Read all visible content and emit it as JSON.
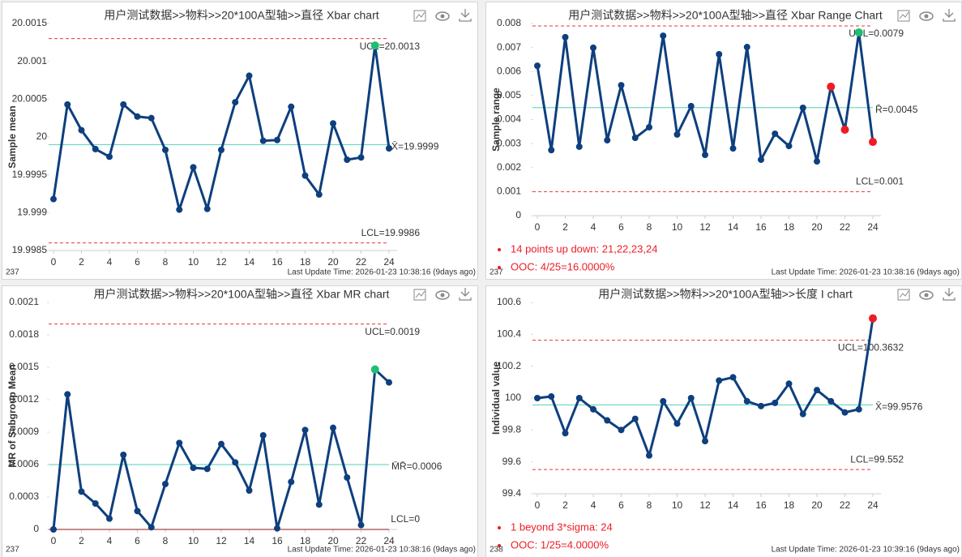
{
  "chart_data": [
    {
      "type": "line",
      "title": "用户测试数据>>物料>>20*100A型轴>>直径 Xbar chart",
      "y_label": "Sample mean",
      "x": [
        0,
        1,
        2,
        3,
        4,
        5,
        6,
        7,
        8,
        9,
        10,
        11,
        12,
        13,
        14,
        15,
        16,
        17,
        18,
        19,
        20,
        21,
        22,
        23,
        24
      ],
      "values": [
        19.99918,
        20.00043,
        20.00009,
        19.99984,
        19.99974,
        20.00043,
        20.00027,
        20.00025,
        19.99983,
        19.99904,
        19.9996,
        19.99905,
        19.99983,
        20.00046,
        20.00081,
        19.99995,
        19.99996,
        20.0004,
        19.99949,
        19.99924,
        20.00018,
        19.9997,
        19.99973,
        20.00121,
        19.99985
      ],
      "color": "#0e3f7e",
      "point_colors": [
        "#0e3f7e",
        "#0e3f7e",
        "#0e3f7e",
        "#0e3f7e",
        "#0e3f7e",
        "#0e3f7e",
        "#0e3f7e",
        "#0e3f7e",
        "#0e3f7e",
        "#0e3f7e",
        "#0e3f7e",
        "#0e3f7e",
        "#0e3f7e",
        "#0e3f7e",
        "#0e3f7e",
        "#0e3f7e",
        "#0e3f7e",
        "#0e3f7e",
        "#0e3f7e",
        "#0e3f7e",
        "#0e3f7e",
        "#0e3f7e",
        "#0e3f7e",
        "#1dbf73",
        "#0e3f7e"
      ],
      "xlim": [
        0,
        24
      ],
      "xticks": [
        0,
        2,
        4,
        6,
        8,
        10,
        12,
        14,
        16,
        18,
        20,
        22,
        24
      ],
      "ylim": [
        19.9985,
        20.0015
      ],
      "yticks": [
        19.9985,
        19.999,
        19.9995,
        20,
        20.0005,
        20.001,
        20.0015
      ],
      "ref_lines": [
        {
          "label": "UCL=20.0013",
          "value": 20.0013,
          "color": "#e53935",
          "dashed": true
        },
        {
          "label": "X̄=19.9999",
          "value": 19.9999,
          "color": "#4fd1b8",
          "dashed": false
        },
        {
          "label": "LCL=19.9986",
          "value": 19.9986,
          "color": "#e53935",
          "dashed": true
        }
      ],
      "footer_id": "237",
      "footer_time": "Last Update Time: 2026-01-23 10:38:16 (9days ago)"
    },
    {
      "type": "line",
      "title": "用户测试数据>>物料>>20*100A型轴>>直径 Xbar Range Chart",
      "y_label": "Sample range",
      "x": [
        0,
        1,
        2,
        3,
        4,
        5,
        6,
        7,
        8,
        9,
        10,
        11,
        12,
        13,
        14,
        15,
        16,
        17,
        18,
        19,
        20,
        21,
        22,
        23,
        24
      ],
      "values": [
        0.00624,
        0.00273,
        0.00743,
        0.00287,
        0.00699,
        0.00314,
        0.00543,
        0.00324,
        0.00368,
        0.00749,
        0.00338,
        0.00456,
        0.00253,
        0.00672,
        0.0028,
        0.00702,
        0.00233,
        0.00341,
        0.0029,
        0.00449,
        0.00226,
        0.00537,
        0.00358,
        0.00763,
        0.00307
      ],
      "color": "#0e3f7e",
      "point_colors": [
        "#0e3f7e",
        "#0e3f7e",
        "#0e3f7e",
        "#0e3f7e",
        "#0e3f7e",
        "#0e3f7e",
        "#0e3f7e",
        "#0e3f7e",
        "#0e3f7e",
        "#0e3f7e",
        "#0e3f7e",
        "#0e3f7e",
        "#0e3f7e",
        "#0e3f7e",
        "#0e3f7e",
        "#0e3f7e",
        "#0e3f7e",
        "#0e3f7e",
        "#0e3f7e",
        "#0e3f7e",
        "#0e3f7e",
        "#ee1c25",
        "#ee1c25",
        "#1dbf73",
        "#ee1c25"
      ],
      "xlim": [
        0,
        24
      ],
      "xticks": [
        0,
        2,
        4,
        6,
        8,
        10,
        12,
        14,
        16,
        18,
        20,
        22,
        24
      ],
      "ylim": [
        0,
        0.008
      ],
      "yticks": [
        0,
        0.001,
        0.002,
        0.003,
        0.004,
        0.005,
        0.006,
        0.007,
        0.008
      ],
      "ref_lines": [
        {
          "label": "UCL=0.0079",
          "value": 0.0079,
          "color": "#e53935",
          "dashed": true
        },
        {
          "label": "R̄=0.0045",
          "value": 0.0045,
          "color": "#4fd1b8",
          "dashed": false
        },
        {
          "label": "LCL=0.001",
          "value": 0.001,
          "color": "#e53935",
          "dashed": true
        }
      ],
      "notes": [
        "14 points up down: 21,22,23,24",
        "OOC: 4/25=16.0000%"
      ],
      "footer_id": "237",
      "footer_time": "Last Update Time: 2026-01-23 10:38:16 (9days ago)"
    },
    {
      "type": "line",
      "title": "用户测试数据>>物料>>20*100A型轴>>直径 Xbar MR chart",
      "y_label": "MR of Subgroup Mean",
      "x": [
        0,
        1,
        2,
        3,
        4,
        5,
        6,
        7,
        8,
        9,
        10,
        11,
        12,
        13,
        14,
        15,
        16,
        17,
        18,
        19,
        20,
        21,
        22,
        23,
        24
      ],
      "values": [
        0,
        0.00125,
        0.00035,
        0.00024,
        0.0001,
        0.00069,
        0.00017,
        2e-05,
        0.00042,
        0.0008,
        0.00057,
        0.00056,
        0.00079,
        0.00062,
        0.00036,
        0.00087,
        1e-05,
        0.00044,
        0.00092,
        0.00023,
        0.00094,
        0.00048,
        4e-05,
        0.00148,
        0.00136
      ],
      "color": "#0e3f7e",
      "point_colors": [
        "#0e3f7e",
        "#0e3f7e",
        "#0e3f7e",
        "#0e3f7e",
        "#0e3f7e",
        "#0e3f7e",
        "#0e3f7e",
        "#0e3f7e",
        "#0e3f7e",
        "#0e3f7e",
        "#0e3f7e",
        "#0e3f7e",
        "#0e3f7e",
        "#0e3f7e",
        "#0e3f7e",
        "#0e3f7e",
        "#0e3f7e",
        "#0e3f7e",
        "#0e3f7e",
        "#0e3f7e",
        "#0e3f7e",
        "#0e3f7e",
        "#0e3f7e",
        "#1dbf73",
        "#0e3f7e"
      ],
      "xlim": [
        0,
        24
      ],
      "xticks": [
        0,
        2,
        4,
        6,
        8,
        10,
        12,
        14,
        16,
        18,
        20,
        22,
        24
      ],
      "ylim": [
        0,
        0.0021
      ],
      "yticks": [
        0,
        0.0003,
        0.0006,
        0.0009,
        0.0012,
        0.0015,
        0.0018,
        0.0021
      ],
      "ref_lines": [
        {
          "label": "UCL=0.0019",
          "value": 0.0019,
          "color": "#e53935",
          "dashed": true
        },
        {
          "label": "M̄R̄=0.0006",
          "value": 0.0006,
          "color": "#4fd1b8",
          "dashed": false
        },
        {
          "label": "LCL=0",
          "value": 0,
          "color": "#8b1a1a",
          "dashed": false
        }
      ],
      "footer_id": "237",
      "footer_time": "Last Update Time: 2026-01-23 10:38:16 (9days ago)"
    },
    {
      "type": "line",
      "title": "用户测试数据>>物料>>20*100A型轴>>长度 I chart",
      "y_label": "Individual value",
      "x": [
        0,
        1,
        2,
        3,
        4,
        5,
        6,
        7,
        8,
        9,
        10,
        11,
        12,
        13,
        14,
        15,
        16,
        17,
        18,
        19,
        20,
        21,
        22,
        23,
        24
      ],
      "values": [
        100.0,
        100.01,
        99.78,
        100.0,
        99.93,
        99.86,
        99.8,
        99.87,
        99.64,
        99.98,
        99.84,
        100.0,
        99.73,
        100.11,
        100.13,
        99.98,
        99.95,
        99.97,
        100.09,
        99.9,
        100.05,
        99.98,
        99.91,
        99.93,
        100.5
      ],
      "color": "#0e3f7e",
      "point_colors": [
        "#0e3f7e",
        "#0e3f7e",
        "#0e3f7e",
        "#0e3f7e",
        "#0e3f7e",
        "#0e3f7e",
        "#0e3f7e",
        "#0e3f7e",
        "#0e3f7e",
        "#0e3f7e",
        "#0e3f7e",
        "#0e3f7e",
        "#0e3f7e",
        "#0e3f7e",
        "#0e3f7e",
        "#0e3f7e",
        "#0e3f7e",
        "#0e3f7e",
        "#0e3f7e",
        "#0e3f7e",
        "#0e3f7e",
        "#0e3f7e",
        "#0e3f7e",
        "#0e3f7e",
        "#ee1c25"
      ],
      "xlim": [
        0,
        24
      ],
      "xticks": [
        0,
        2,
        4,
        6,
        8,
        10,
        12,
        14,
        16,
        18,
        20,
        22,
        24
      ],
      "ylim": [
        99.4,
        100.6
      ],
      "yticks": [
        99.4,
        99.6,
        99.8,
        100,
        100.2,
        100.4,
        100.6
      ],
      "ref_lines": [
        {
          "label": "UCL=100.3632",
          "value": 100.3632,
          "color": "#e53935",
          "dashed": true
        },
        {
          "label": "X̄=99.9576",
          "value": 99.9576,
          "color": "#4fd1b8",
          "dashed": false
        },
        {
          "label": "LCL=99.552",
          "value": 99.552,
          "color": "#e53935",
          "dashed": true
        }
      ],
      "notes": [
        "1 beyond 3*sigma: 24",
        "OOC: 1/25=4.0000%"
      ],
      "footer_id": "238",
      "footer_time": "Last Update Time: 2026-01-23 10:39:16 (9days ago)"
    }
  ]
}
